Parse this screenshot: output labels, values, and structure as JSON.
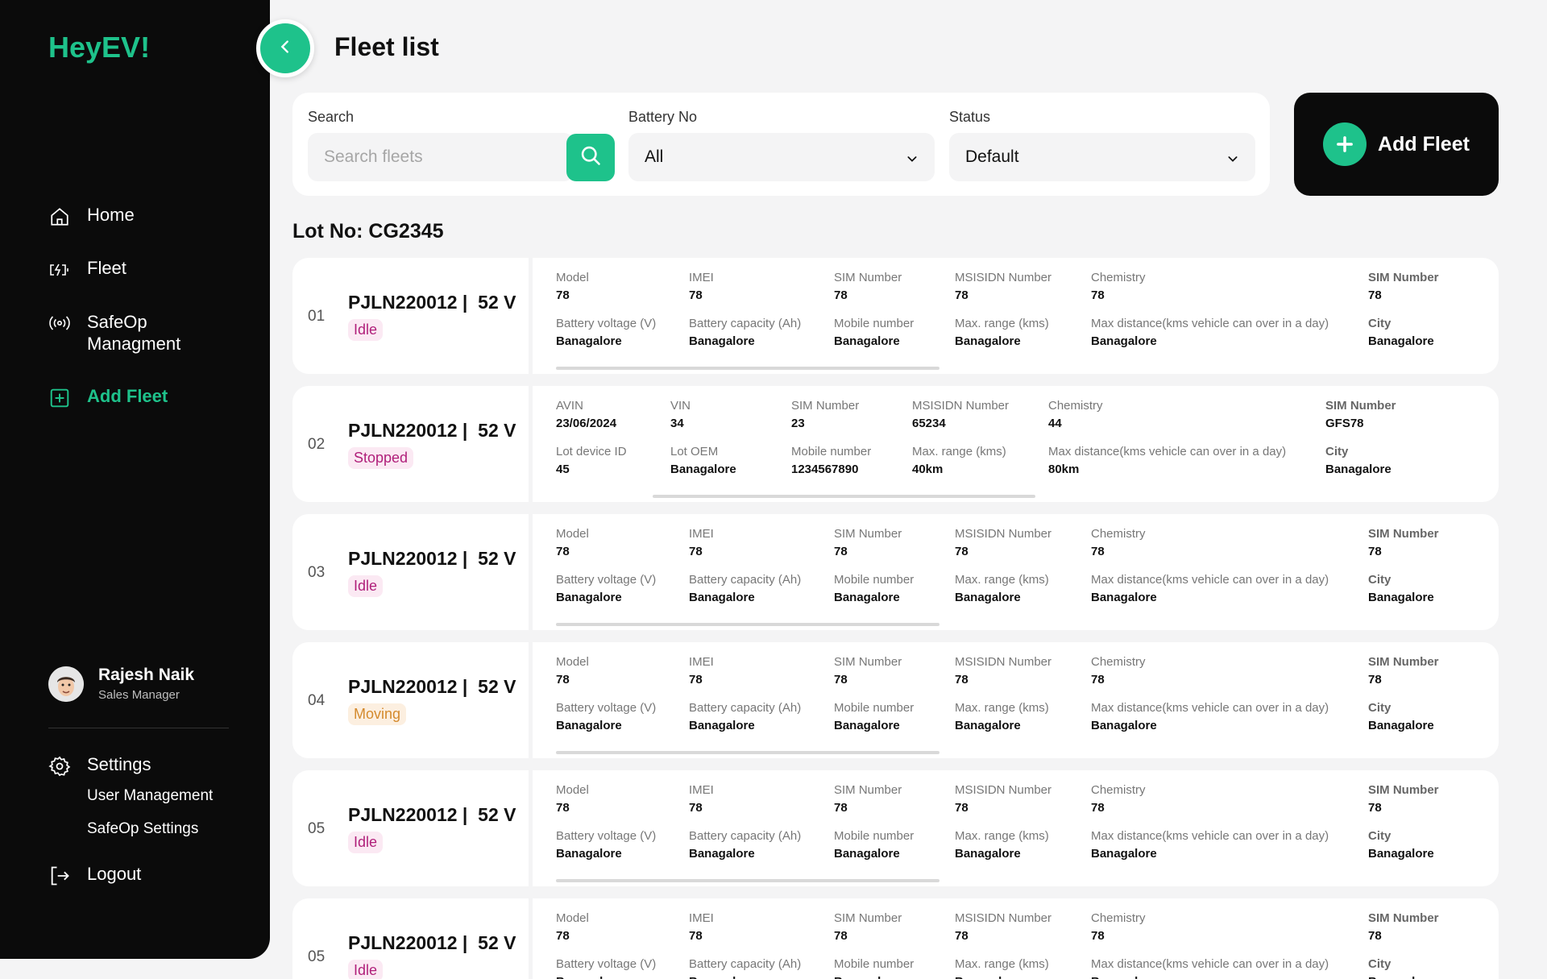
{
  "app": {
    "logo": "HeyEV!",
    "accent": "#1ec28b"
  },
  "sidebar": {
    "nav": [
      {
        "label": "Home",
        "icon": "home-icon"
      },
      {
        "label": "Fleet",
        "icon": "battery-charging-icon"
      },
      {
        "label": "SafeOp",
        "label2": "Managment",
        "icon": "broadcast-icon"
      },
      {
        "label": "Add Fleet",
        "icon": "plus-square-icon",
        "active": true
      }
    ],
    "user": {
      "name": "Rajesh Naik",
      "role": "Sales Manager"
    },
    "settings": {
      "label": "Settings",
      "items": [
        "User Management",
        "SafeOp Settings"
      ]
    },
    "logout": "Logout"
  },
  "header": {
    "title": "Fleet list"
  },
  "filters": {
    "search": {
      "label": "Search",
      "placeholder": "Search fleets"
    },
    "battery": {
      "label": "Battery No",
      "value": "All"
    },
    "status": {
      "label": "Status",
      "value": "Default"
    }
  },
  "add_fleet_label": "Add Fleet",
  "lot_label": "Lot No: CG2345",
  "rows": [
    {
      "num": "01",
      "id": "PJLN220012",
      "voltage": "52 V",
      "status": "Idle",
      "top": [
        [
          "Model",
          "78"
        ],
        [
          "IMEI",
          "78"
        ],
        [
          "SIM Number",
          "78"
        ],
        [
          "MSISIDN Number",
          "78"
        ],
        [
          "Chemistry",
          "78"
        ],
        [
          "SIM Number",
          "78"
        ]
      ],
      "bottom": [
        [
          "Battery voltage (V)",
          "Banagalore"
        ],
        [
          "Battery capacity (Ah)",
          "Banagalore"
        ],
        [
          "Mobile number",
          "Banagalore"
        ],
        [
          "Max. range (kms)",
          "Banagalore"
        ],
        [
          "Max distance(kms vehicle can over in a day)",
          "Banagalore"
        ],
        [
          "City",
          "Banagalore"
        ]
      ]
    },
    {
      "num": "02",
      "id": "PJLN220012",
      "voltage": "52 V",
      "status": "Stopped",
      "top": [
        [
          "AVIN",
          "23/06/2024"
        ],
        [
          "VIN",
          "34"
        ],
        [
          "SIM Number",
          "23"
        ],
        [
          "MSISIDN Number",
          "65234"
        ],
        [
          "Chemistry",
          "44"
        ],
        [
          "SIM Number",
          "GFS78"
        ]
      ],
      "bottom": [
        [
          "Lot device ID",
          "45"
        ],
        [
          "Lot OEM",
          "Banagalore"
        ],
        [
          "Mobile number",
          "1234567890"
        ],
        [
          "Max. range (kms)",
          "40km"
        ],
        [
          "Max distance(kms vehicle can over in a day)",
          "80km"
        ],
        [
          "City",
          "Banagalore"
        ]
      ]
    },
    {
      "num": "03",
      "id": "PJLN220012",
      "voltage": "52 V",
      "status": "Idle",
      "top": [
        [
          "Model",
          "78"
        ],
        [
          "IMEI",
          "78"
        ],
        [
          "SIM Number",
          "78"
        ],
        [
          "MSISIDN Number",
          "78"
        ],
        [
          "Chemistry",
          "78"
        ],
        [
          "SIM Number",
          "78"
        ]
      ],
      "bottom": [
        [
          "Battery voltage (V)",
          "Banagalore"
        ],
        [
          "Battery capacity (Ah)",
          "Banagalore"
        ],
        [
          "Mobile number",
          "Banagalore"
        ],
        [
          "Max. range (kms)",
          "Banagalore"
        ],
        [
          "Max distance(kms vehicle can over in a day)",
          "Banagalore"
        ],
        [
          "City",
          "Banagalore"
        ]
      ]
    },
    {
      "num": "04",
      "id": "PJLN220012",
      "voltage": "52 V",
      "status": "Moving",
      "top": [
        [
          "Model",
          "78"
        ],
        [
          "IMEI",
          "78"
        ],
        [
          "SIM Number",
          "78"
        ],
        [
          "MSISIDN Number",
          "78"
        ],
        [
          "Chemistry",
          "78"
        ],
        [
          "SIM Number",
          "78"
        ]
      ],
      "bottom": [
        [
          "Battery voltage (V)",
          "Banagalore"
        ],
        [
          "Battery capacity (Ah)",
          "Banagalore"
        ],
        [
          "Mobile number",
          "Banagalore"
        ],
        [
          "Max. range (kms)",
          "Banagalore"
        ],
        [
          "Max distance(kms vehicle can over in a day)",
          "Banagalore"
        ],
        [
          "City",
          "Banagalore"
        ]
      ]
    },
    {
      "num": "05",
      "id": "PJLN220012",
      "voltage": "52 V",
      "status": "Idle",
      "top": [
        [
          "Model",
          "78"
        ],
        [
          "IMEI",
          "78"
        ],
        [
          "SIM Number",
          "78"
        ],
        [
          "MSISIDN Number",
          "78"
        ],
        [
          "Chemistry",
          "78"
        ],
        [
          "SIM Number",
          "78"
        ]
      ],
      "bottom": [
        [
          "Battery voltage (V)",
          "Banagalore"
        ],
        [
          "Battery capacity (Ah)",
          "Banagalore"
        ],
        [
          "Mobile number",
          "Banagalore"
        ],
        [
          "Max. range (kms)",
          "Banagalore"
        ],
        [
          "Max distance(kms vehicle can over in a day)",
          "Banagalore"
        ],
        [
          "City",
          "Banagalore"
        ]
      ]
    },
    {
      "num": "05",
      "id": "PJLN220012",
      "voltage": "52 V",
      "status": "Idle",
      "top": [
        [
          "Model",
          "78"
        ],
        [
          "IMEI",
          "78"
        ],
        [
          "SIM Number",
          "78"
        ],
        [
          "MSISIDN Number",
          "78"
        ],
        [
          "Chemistry",
          "78"
        ],
        [
          "SIM Number",
          "78"
        ]
      ],
      "bottom": [
        [
          "Battery voltage (V)",
          "Banagalore"
        ],
        [
          "Battery capacity (Ah)",
          "Banagalore"
        ],
        [
          "Mobile number",
          "Banagalore"
        ],
        [
          "Max. range (kms)",
          "Banagalore"
        ],
        [
          "Max distance(kms vehicle can over in a day)",
          "Banagalore"
        ],
        [
          "City",
          "Banagalore"
        ]
      ]
    }
  ]
}
